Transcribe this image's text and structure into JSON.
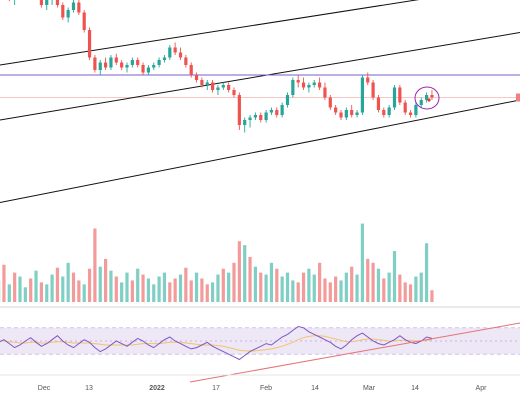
{
  "chart_data": {
    "type": "candlestick",
    "instrument": "",
    "xaxis": {
      "ticks": [
        "Dec",
        "13",
        "2022",
        "17",
        "Feb",
        "14",
        "Mar",
        "14",
        "Apr"
      ],
      "bold_tick": "2022"
    },
    "price_panel": {
      "grid": false,
      "candles": [
        [
          120,
          125,
          110,
          115
        ],
        [
          115,
          120,
          105,
          108
        ],
        [
          108,
          112,
          95,
          98
        ],
        [
          98,
          105,
          92,
          103
        ],
        [
          103,
          110,
          100,
          108
        ],
        [
          108,
          118,
          106,
          116
        ],
        [
          116,
          120,
          108,
          110
        ],
        [
          110,
          112,
          98,
          100
        ],
        [
          100,
          104,
          90,
          92
        ],
        [
          92,
          98,
          88,
          96
        ],
        [
          96,
          102,
          92,
          100
        ],
        [
          100,
          101,
          90,
          92
        ],
        [
          92,
          94,
          80,
          82
        ],
        [
          82,
          90,
          78,
          88
        ],
        [
          88,
          96,
          86,
          94
        ],
        [
          94,
          98,
          84,
          86
        ],
        [
          86,
          88,
          70,
          72
        ],
        [
          72,
          74,
          48,
          50
        ],
        [
          50,
          52,
          38,
          40
        ],
        [
          40,
          48,
          36,
          46
        ],
        [
          46,
          50,
          40,
          42
        ],
        [
          42,
          52,
          40,
          50
        ],
        [
          50,
          53,
          44,
          46
        ],
        [
          46,
          48,
          40,
          42
        ],
        [
          42,
          46,
          38,
          44
        ],
        [
          44,
          50,
          42,
          48
        ],
        [
          48,
          50,
          42,
          44
        ],
        [
          44,
          46,
          36,
          38
        ],
        [
          38,
          44,
          36,
          42
        ],
        [
          42,
          46,
          40,
          44
        ],
        [
          44,
          50,
          42,
          48
        ],
        [
          48,
          52,
          46,
          50
        ],
        [
          50,
          60,
          48,
          58
        ],
        [
          58,
          62,
          52,
          54
        ],
        [
          54,
          58,
          48,
          50
        ],
        [
          50,
          52,
          42,
          44
        ],
        [
          44,
          46,
          34,
          36
        ],
        [
          36,
          38,
          30,
          32
        ],
        [
          32,
          34,
          26,
          28
        ],
        [
          28,
          32,
          24,
          30
        ],
        [
          30,
          32,
          22,
          24
        ],
        [
          24,
          28,
          20,
          26
        ],
        [
          26,
          30,
          24,
          28
        ],
        [
          28,
          30,
          22,
          24
        ],
        [
          24,
          26,
          18,
          20
        ],
        [
          20,
          22,
          -8,
          -4
        ],
        [
          -4,
          2,
          -10,
          0
        ],
        [
          0,
          4,
          -6,
          2
        ],
        [
          2,
          6,
          0,
          4
        ],
        [
          4,
          6,
          -2,
          0
        ],
        [
          0,
          8,
          -2,
          6
        ],
        [
          6,
          10,
          4,
          8
        ],
        [
          8,
          10,
          2,
          4
        ],
        [
          4,
          14,
          2,
          12
        ],
        [
          12,
          22,
          10,
          20
        ],
        [
          20,
          34,
          18,
          32
        ],
        [
          32,
          36,
          26,
          30
        ],
        [
          30,
          34,
          24,
          26
        ],
        [
          26,
          30,
          22,
          28
        ],
        [
          28,
          32,
          26,
          30
        ],
        [
          30,
          34,
          24,
          26
        ],
        [
          26,
          30,
          16,
          18
        ],
        [
          18,
          20,
          8,
          10
        ],
        [
          10,
          12,
          4,
          6
        ],
        [
          6,
          8,
          0,
          2
        ],
        [
          2,
          10,
          0,
          8
        ],
        [
          8,
          12,
          2,
          4
        ],
        [
          4,
          8,
          2,
          6
        ],
        [
          6,
          36,
          4,
          34
        ],
        [
          34,
          38,
          28,
          30
        ],
        [
          30,
          32,
          16,
          18
        ],
        [
          18,
          20,
          6,
          8
        ],
        [
          8,
          10,
          2,
          4
        ],
        [
          4,
          12,
          2,
          10
        ],
        [
          10,
          28,
          8,
          26
        ],
        [
          26,
          28,
          12,
          14
        ],
        [
          14,
          16,
          4,
          6
        ],
        [
          6,
          8,
          2,
          4
        ],
        [
          4,
          14,
          2,
          12
        ],
        [
          12,
          18,
          10,
          16
        ],
        [
          16,
          22,
          14,
          20
        ],
        [
          20,
          24,
          16,
          18
        ]
      ],
      "lines": [
        {
          "role": "upper-channel",
          "color": "#111111",
          "y0": 44,
          "y1": 109
        },
        {
          "role": "middle-channel",
          "color": "#111111",
          "y0": 0,
          "y1": 70
        },
        {
          "role": "lower-channel",
          "color": "#111111",
          "y0": -66,
          "y1": 16
        },
        {
          "role": "horizontal-resistance",
          "color": "#7b5fc9",
          "y0": 36,
          "y1": 36
        }
      ],
      "last_price_marker": {
        "color": "#f08080"
      }
    },
    "volume_panel": {
      "up_color": "#7fcfc4",
      "down_color": "#f39a9a",
      "values": [
        22,
        38,
        18,
        30,
        26,
        15,
        24,
        32,
        20,
        18,
        28,
        35,
        26,
        40,
        30,
        22,
        18,
        34,
        75,
        36,
        44,
        32,
        26,
        20,
        30,
        22,
        34,
        28,
        24,
        18,
        26,
        30,
        20,
        24,
        28,
        35,
        22,
        30,
        24,
        18,
        20,
        28,
        34,
        30,
        40,
        62,
        58,
        46,
        36,
        30,
        28,
        40,
        34,
        26,
        30,
        22,
        20,
        30,
        34,
        28,
        40,
        24,
        20,
        26,
        22,
        30,
        36,
        28,
        80,
        44,
        40,
        34,
        24,
        30,
        52,
        28,
        20,
        18,
        26,
        30,
        60,
        12
      ],
      "up_flags": [
        1,
        0,
        1,
        0,
        1,
        1,
        0,
        1,
        0,
        1,
        1,
        0,
        1,
        1,
        0,
        0,
        1,
        0,
        0,
        1,
        0,
        1,
        0,
        1,
        1,
        0,
        1,
        0,
        1,
        1,
        1,
        1,
        0,
        0,
        1,
        0,
        0,
        1,
        0,
        0,
        1,
        1,
        0,
        1,
        0,
        0,
        1,
        0,
        1,
        0,
        1,
        1,
        0,
        1,
        1,
        1,
        0,
        0,
        1,
        1,
        0,
        0,
        0,
        0,
        1,
        1,
        0,
        1,
        1,
        0,
        0,
        1,
        0,
        1,
        1,
        0,
        0,
        0,
        1,
        1,
        1,
        0
      ]
    },
    "rsi_panel": {
      "range": [
        0,
        100
      ],
      "band": [
        30,
        70
      ],
      "band_color": "#ede7f6",
      "rsi_color": "#7e57c2",
      "ma_color": "#f5c26b",
      "trendline_color": "#e57373",
      "rsi": [
        48,
        52,
        46,
        40,
        44,
        50,
        55,
        48,
        42,
        46,
        52,
        58,
        50,
        44,
        40,
        46,
        52,
        48,
        40,
        34,
        38,
        44,
        50,
        46,
        42,
        48,
        54,
        50,
        44,
        40,
        46,
        52,
        56,
        50,
        46,
        42,
        38,
        40,
        44,
        48,
        42,
        38,
        34,
        30,
        26,
        22,
        28,
        34,
        38,
        42,
        46,
        44,
        50,
        56,
        60,
        66,
        72,
        70,
        64,
        60,
        56,
        52,
        48,
        42,
        38,
        44,
        52,
        58,
        62,
        56,
        50,
        46,
        44,
        48,
        52,
        58,
        52,
        48,
        46,
        50,
        56,
        54
      ],
      "ma": [
        50,
        50,
        49,
        48,
        47,
        47,
        48,
        48,
        47,
        47,
        48,
        49,
        49,
        48,
        47,
        47,
        47,
        47,
        46,
        45,
        44,
        44,
        44,
        44,
        44,
        44,
        45,
        46,
        46,
        46,
        46,
        47,
        48,
        48,
        48,
        47,
        46,
        45,
        44,
        44,
        44,
        43,
        42,
        40,
        38,
        36,
        35,
        35,
        35,
        36,
        37,
        38,
        40,
        42,
        45,
        48,
        52,
        55,
        57,
        58,
        58,
        57,
        55,
        53,
        51,
        49,
        49,
        50,
        52,
        53,
        53,
        52,
        51,
        50,
        50,
        51,
        51,
        51,
        50,
        50,
        51,
        52
      ]
    }
  }
}
